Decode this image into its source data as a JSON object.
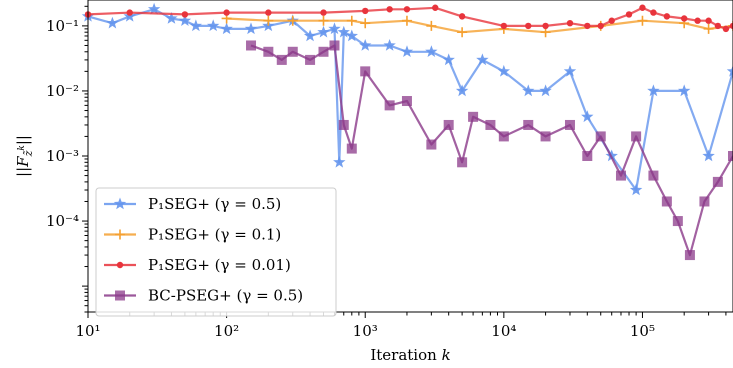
{
  "chart_data": {
    "type": "line",
    "xlabel": "Iteration k",
    "ylabel": "||F z̃ k||",
    "xscale": "log",
    "yscale": "log",
    "xlim": [
      10,
      450000
    ],
    "ylim": [
      4e-06,
      0.25
    ],
    "x_ticks": [
      {
        "value": 10,
        "label": "10¹"
      },
      {
        "value": 100,
        "label": "10²"
      },
      {
        "value": 1000,
        "label": "10³"
      },
      {
        "value": 10000,
        "label": "10⁴"
      },
      {
        "value": 100000,
        "label": "10⁵"
      }
    ],
    "y_ticks": [
      {
        "value": 0.1,
        "label": "10⁻¹"
      },
      {
        "value": 0.01,
        "label": "10⁻²"
      },
      {
        "value": 0.001,
        "label": "10⁻³"
      },
      {
        "value": 0.0001,
        "label": "10⁻⁴"
      }
    ],
    "grid": false,
    "legend_position": "lower-left",
    "series": [
      {
        "name": "P₁SEG+ (γ = 0.5)",
        "color": "#6495ED",
        "marker": "star",
        "x": [
          10,
          15,
          20,
          30,
          40,
          50,
          60,
          80,
          100,
          150,
          200,
          300,
          400,
          500,
          600,
          650,
          700,
          800,
          1000,
          1500,
          2000,
          3000,
          4000,
          5000,
          7000,
          10000,
          15000,
          20000,
          30000,
          40000,
          60000,
          90000,
          120000,
          200000,
          300000,
          450000
        ],
        "y": [
          0.14,
          0.11,
          0.14,
          0.18,
          0.13,
          0.12,
          0.1,
          0.1,
          0.09,
          0.09,
          0.1,
          0.12,
          0.07,
          0.08,
          0.09,
          0.0008,
          0.08,
          0.07,
          0.05,
          0.05,
          0.04,
          0.04,
          0.03,
          0.01,
          0.03,
          0.02,
          0.01,
          0.01,
          0.02,
          0.004,
          0.001,
          0.0003,
          0.01,
          0.01,
          0.001,
          0.02
        ]
      },
      {
        "name": "P₁SEG+ (γ = 0.1)",
        "color": "#F5A030",
        "marker": "plus",
        "x": [
          100,
          200,
          300,
          500,
          800,
          1000,
          2000,
          3000,
          5000,
          10000,
          20000,
          50000,
          100000,
          200000,
          300000,
          450000
        ],
        "y": [
          0.13,
          0.12,
          0.12,
          0.12,
          0.12,
          0.11,
          0.12,
          0.1,
          0.08,
          0.09,
          0.08,
          0.1,
          0.12,
          0.11,
          0.09,
          0.1
        ]
      },
      {
        "name": "P₁SEG+ (γ = 0.01)",
        "color": "#E8343C",
        "marker": "circle",
        "x": [
          10,
          20,
          50,
          100,
          200,
          500,
          1000,
          1500,
          2000,
          3200,
          5000,
          10000,
          15000,
          20000,
          30000,
          40000,
          50000,
          60000,
          80000,
          100000,
          120000,
          150000,
          200000,
          250000,
          300000,
          350000,
          400000,
          450000
        ],
        "y": [
          0.15,
          0.16,
          0.15,
          0.16,
          0.16,
          0.16,
          0.17,
          0.18,
          0.18,
          0.19,
          0.14,
          0.1,
          0.1,
          0.1,
          0.11,
          0.1,
          0.1,
          0.12,
          0.15,
          0.19,
          0.16,
          0.14,
          0.13,
          0.12,
          0.12,
          0.1,
          0.09,
          0.1
        ]
      },
      {
        "name": "BC-PSEG+ (γ = 0.5)",
        "color": "#8B3A8A",
        "marker": "square",
        "x": [
          150,
          200,
          250,
          300,
          400,
          500,
          600,
          700,
          800,
          1000,
          1500,
          2000,
          3000,
          4000,
          5000,
          6000,
          8000,
          10000,
          15000,
          20000,
          30000,
          40000,
          50000,
          70000,
          90000,
          120000,
          150000,
          180000,
          220000,
          280000,
          350000,
          450000
        ],
        "y": [
          0.05,
          0.04,
          0.03,
          0.04,
          0.03,
          0.04,
          0.05,
          0.003,
          0.0013,
          0.02,
          0.006,
          0.007,
          0.0015,
          0.003,
          0.0008,
          0.004,
          0.003,
          0.002,
          0.003,
          0.002,
          0.003,
          0.001,
          0.002,
          0.0005,
          0.002,
          0.0005,
          0.0002,
          0.0001,
          3e-05,
          0.0002,
          0.0004,
          0.001
        ]
      }
    ]
  }
}
